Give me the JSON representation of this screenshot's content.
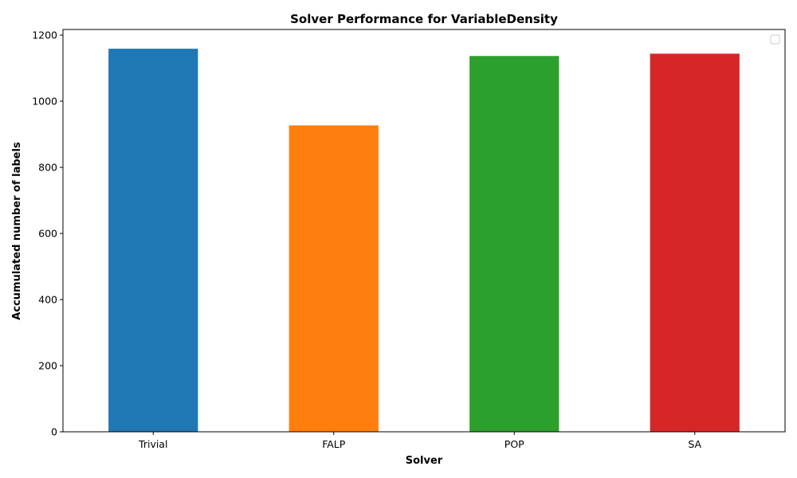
{
  "chart_data": {
    "type": "bar",
    "title": "Solver Performance for VariableDensity",
    "xlabel": "Solver",
    "ylabel": "Accumulated number of labels",
    "categories": [
      "Trivial",
      "FALP",
      "POP",
      "SA"
    ],
    "values": [
      1160,
      928,
      1138,
      1145
    ],
    "colors": [
      "#1f77b4",
      "#ff7f0e",
      "#2ca02c",
      "#d62728"
    ],
    "ylim": [
      0,
      1217
    ],
    "yticks": [
      0,
      200,
      400,
      600,
      800,
      1000,
      1200
    ],
    "grid": false,
    "legend": {
      "placement": "top-right",
      "entries": []
    }
  }
}
